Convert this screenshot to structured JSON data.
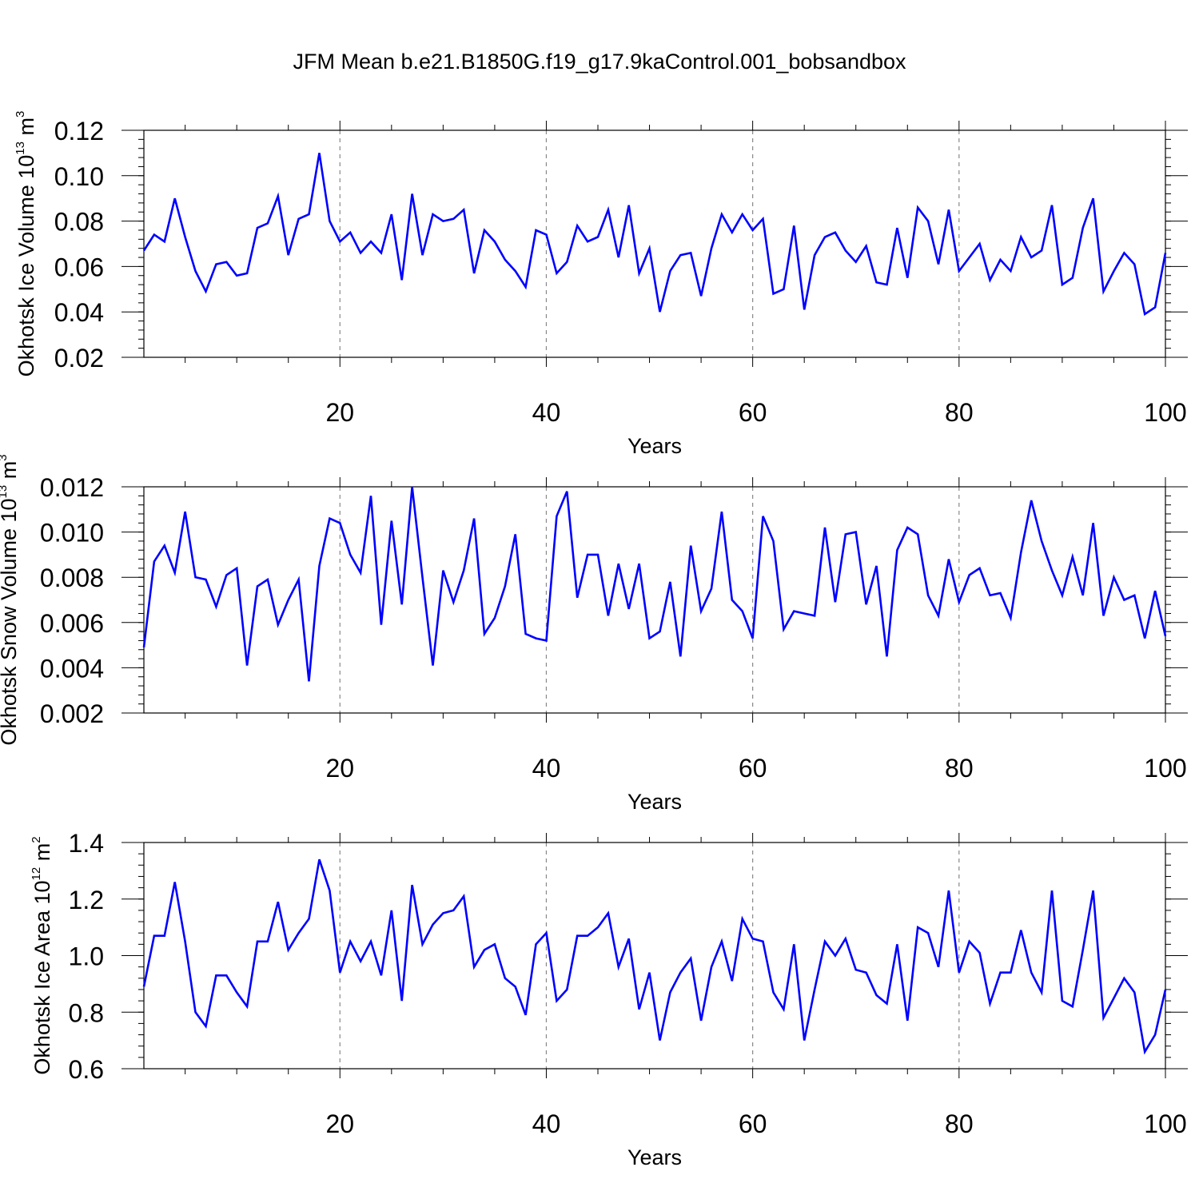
{
  "page": {
    "title": "JFM Mean b.e21.B1850G.f19_g17.9kaControl.001_bobsandbox"
  },
  "colors": {
    "line": "#0000ff",
    "axis": "#000000",
    "grid": "#888888",
    "background": "#ffffff"
  },
  "chart_data": [
    {
      "type": "line",
      "name": "okhotsk-ice-volume",
      "ylabel_main": "Okhotsk Ice Volume 10",
      "ylabel_exp": "13",
      "ylabel_unit": " m",
      "ylabel_unit_exp": "3",
      "xlabel": "Years",
      "xlim": [
        1,
        100
      ],
      "ylim": [
        0.02,
        0.12
      ],
      "x_ticks": [
        20,
        40,
        60,
        80,
        100
      ],
      "x_tick_labels": [
        "20",
        "40",
        "60",
        "80",
        "100"
      ],
      "y_ticks": [
        0.02,
        0.04,
        0.06,
        0.08,
        0.1,
        0.12
      ],
      "y_tick_labels": [
        "0.02",
        "0.04",
        "0.06",
        "0.08",
        "0.10",
        "0.12"
      ],
      "y_minor_step": 0.004,
      "grid_x": true,
      "x": [
        1,
        2,
        3,
        4,
        5,
        6,
        7,
        8,
        9,
        10,
        11,
        12,
        13,
        14,
        15,
        16,
        17,
        18,
        19,
        20,
        21,
        22,
        23,
        24,
        25,
        26,
        27,
        28,
        29,
        30,
        31,
        32,
        33,
        34,
        35,
        36,
        37,
        38,
        39,
        40,
        41,
        42,
        43,
        44,
        45,
        46,
        47,
        48,
        49,
        50,
        51,
        52,
        53,
        54,
        55,
        56,
        57,
        58,
        59,
        60,
        61,
        62,
        63,
        64,
        65,
        66,
        67,
        68,
        69,
        70,
        71,
        72,
        73,
        74,
        75,
        76,
        77,
        78,
        79,
        80,
        81,
        82,
        83,
        84,
        85,
        86,
        87,
        88,
        89,
        90,
        91,
        92,
        93,
        94,
        95,
        96,
        97,
        98,
        99,
        100
      ],
      "values": [
        0.067,
        0.074,
        0.071,
        0.09,
        0.073,
        0.058,
        0.049,
        0.061,
        0.062,
        0.056,
        0.057,
        0.077,
        0.079,
        0.091,
        0.065,
        0.081,
        0.083,
        0.11,
        0.08,
        0.071,
        0.075,
        0.066,
        0.071,
        0.066,
        0.083,
        0.054,
        0.092,
        0.065,
        0.083,
        0.08,
        0.081,
        0.085,
        0.057,
        0.076,
        0.071,
        0.063,
        0.058,
        0.051,
        0.076,
        0.074,
        0.057,
        0.062,
        0.078,
        0.071,
        0.073,
        0.085,
        0.064,
        0.087,
        0.057,
        0.068,
        0.04,
        0.058,
        0.065,
        0.066,
        0.047,
        0.068,
        0.083,
        0.075,
        0.083,
        0.076,
        0.081,
        0.048,
        0.05,
        0.078,
        0.041,
        0.065,
        0.073,
        0.075,
        0.067,
        0.062,
        0.069,
        0.053,
        0.052,
        0.077,
        0.055,
        0.086,
        0.08,
        0.061,
        0.085,
        0.058,
        0.064,
        0.07,
        0.054,
        0.063,
        0.058,
        0.073,
        0.064,
        0.067,
        0.087,
        0.052,
        0.055,
        0.077,
        0.09,
        0.049,
        0.058,
        0.066,
        0.061,
        0.039,
        0.042,
        0.066
      ]
    },
    {
      "type": "line",
      "name": "okhotsk-snow-volume",
      "ylabel_main": "Okhotsk Snow Volume 10",
      "ylabel_exp": "13",
      "ylabel_unit": " m",
      "ylabel_unit_exp": "3",
      "xlabel": "Years",
      "xlim": [
        1,
        100
      ],
      "ylim": [
        0.002,
        0.012
      ],
      "x_ticks": [
        20,
        40,
        60,
        80,
        100
      ],
      "x_tick_labels": [
        "20",
        "40",
        "60",
        "80",
        "100"
      ],
      "y_ticks": [
        0.002,
        0.004,
        0.006,
        0.008,
        0.01,
        0.012
      ],
      "y_tick_labels": [
        "0.002",
        "0.004",
        "0.006",
        "0.008",
        "0.010",
        "0.012"
      ],
      "y_minor_step": 0.0004,
      "grid_x": true,
      "x": [
        1,
        2,
        3,
        4,
        5,
        6,
        7,
        8,
        9,
        10,
        11,
        12,
        13,
        14,
        15,
        16,
        17,
        18,
        19,
        20,
        21,
        22,
        23,
        24,
        25,
        26,
        27,
        28,
        29,
        30,
        31,
        32,
        33,
        34,
        35,
        36,
        37,
        38,
        39,
        40,
        41,
        42,
        43,
        44,
        45,
        46,
        47,
        48,
        49,
        50,
        51,
        52,
        53,
        54,
        55,
        56,
        57,
        58,
        59,
        60,
        61,
        62,
        63,
        64,
        65,
        66,
        67,
        68,
        69,
        70,
        71,
        72,
        73,
        74,
        75,
        76,
        77,
        78,
        79,
        80,
        81,
        82,
        83,
        84,
        85,
        86,
        87,
        88,
        89,
        90,
        91,
        92,
        93,
        94,
        95,
        96,
        97,
        98,
        99,
        100
      ],
      "values": [
        0.0049,
        0.0087,
        0.0094,
        0.0082,
        0.0109,
        0.008,
        0.0079,
        0.0067,
        0.0081,
        0.0084,
        0.0041,
        0.0076,
        0.0079,
        0.0059,
        0.007,
        0.0079,
        0.0034,
        0.0085,
        0.0106,
        0.0104,
        0.009,
        0.0082,
        0.0116,
        0.0059,
        0.0105,
        0.0068,
        0.012,
        0.008,
        0.0041,
        0.0083,
        0.0069,
        0.0083,
        0.0106,
        0.0055,
        0.0062,
        0.0076,
        0.0099,
        0.0055,
        0.0053,
        0.0052,
        0.0107,
        0.0118,
        0.0071,
        0.009,
        0.009,
        0.0063,
        0.0086,
        0.0066,
        0.0086,
        0.0053,
        0.0056,
        0.0078,
        0.0045,
        0.0094,
        0.0065,
        0.0075,
        0.0109,
        0.007,
        0.0065,
        0.0053,
        0.0107,
        0.0096,
        0.0057,
        0.0065,
        0.0064,
        0.0063,
        0.0102,
        0.0069,
        0.0099,
        0.01,
        0.0068,
        0.0085,
        0.0045,
        0.0092,
        0.0102,
        0.0099,
        0.0072,
        0.0063,
        0.0088,
        0.0069,
        0.0081,
        0.0084,
        0.0072,
        0.0073,
        0.0062,
        0.0091,
        0.0114,
        0.0096,
        0.0083,
        0.0072,
        0.0089,
        0.0072,
        0.0104,
        0.0063,
        0.008,
        0.007,
        0.0072,
        0.0053,
        0.0074,
        0.0054
      ]
    },
    {
      "type": "line",
      "name": "okhotsk-ice-area",
      "ylabel_main": "Okhotsk Ice Area 10",
      "ylabel_exp": "12",
      "ylabel_unit": " m",
      "ylabel_unit_exp": "2",
      "xlabel": "Years",
      "xlim": [
        1,
        100
      ],
      "ylim": [
        0.6,
        1.4
      ],
      "x_ticks": [
        20,
        40,
        60,
        80,
        100
      ],
      "x_tick_labels": [
        "20",
        "40",
        "60",
        "80",
        "100"
      ],
      "y_ticks": [
        0.6,
        0.8,
        1.0,
        1.2,
        1.4
      ],
      "y_tick_labels": [
        "0.6",
        "0.8",
        "1.0",
        "1.2",
        "1.4"
      ],
      "y_minor_step": 0.04,
      "grid_x": true,
      "x": [
        1,
        2,
        3,
        4,
        5,
        6,
        7,
        8,
        9,
        10,
        11,
        12,
        13,
        14,
        15,
        16,
        17,
        18,
        19,
        20,
        21,
        22,
        23,
        24,
        25,
        26,
        27,
        28,
        29,
        30,
        31,
        32,
        33,
        34,
        35,
        36,
        37,
        38,
        39,
        40,
        41,
        42,
        43,
        44,
        45,
        46,
        47,
        48,
        49,
        50,
        51,
        52,
        53,
        54,
        55,
        56,
        57,
        58,
        59,
        60,
        61,
        62,
        63,
        64,
        65,
        66,
        67,
        68,
        69,
        70,
        71,
        72,
        73,
        74,
        75,
        76,
        77,
        78,
        79,
        80,
        81,
        82,
        83,
        84,
        85,
        86,
        87,
        88,
        89,
        90,
        91,
        92,
        93,
        94,
        95,
        96,
        97,
        98,
        99,
        100
      ],
      "values": [
        0.89,
        1.07,
        1.07,
        1.26,
        1.05,
        0.8,
        0.75,
        0.93,
        0.93,
        0.87,
        0.82,
        1.05,
        1.05,
        1.19,
        1.02,
        1.08,
        1.13,
        1.34,
        1.23,
        0.94,
        1.05,
        0.98,
        1.05,
        0.93,
        1.16,
        0.84,
        1.25,
        1.04,
        1.11,
        1.15,
        1.16,
        1.21,
        0.96,
        1.02,
        1.04,
        0.92,
        0.89,
        0.79,
        1.04,
        1.08,
        0.84,
        0.88,
        1.07,
        1.07,
        1.1,
        1.15,
        0.96,
        1.06,
        0.81,
        0.94,
        0.7,
        0.87,
        0.94,
        0.99,
        0.77,
        0.96,
        1.05,
        0.91,
        1.13,
        1.06,
        1.05,
        0.87,
        0.81,
        1.04,
        0.7,
        0.88,
        1.05,
        1.0,
        1.06,
        0.95,
        0.94,
        0.86,
        0.83,
        1.04,
        0.77,
        1.1,
        1.08,
        0.96,
        1.23,
        0.94,
        1.05,
        1.01,
        0.83,
        0.94,
        0.94,
        1.09,
        0.94,
        0.87,
        1.23,
        0.84,
        0.82,
        1.02,
        1.23,
        0.78,
        0.85,
        0.92,
        0.87,
        0.66,
        0.72,
        0.88
      ]
    }
  ]
}
